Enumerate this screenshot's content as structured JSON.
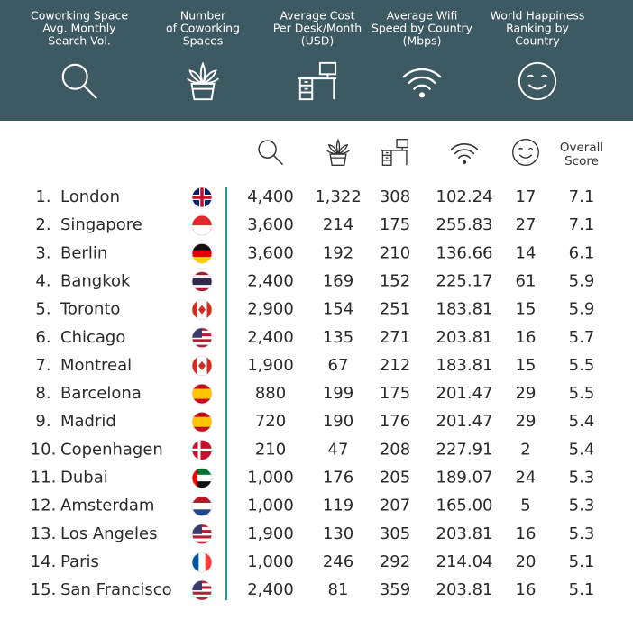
{
  "header": {
    "columns": [
      [
        "Coworking Space",
        "Avg. Monthly",
        "Search Vol."
      ],
      [
        "Number",
        "of Coworking",
        "Spaces"
      ],
      [
        "Average Cost",
        "Per Desk/Month",
        "(USD)"
      ],
      [
        "Average Wifi",
        "Speed by Country",
        "(Mbps)"
      ],
      [
        "World Happiness",
        "Ranking by",
        "Country"
      ]
    ]
  },
  "table": {
    "score_header": [
      "Overall",
      "Score"
    ],
    "rows": [
      [
        "1.",
        "London",
        "4,400",
        "1,322",
        "308",
        "102.24",
        "17",
        "7.1"
      ],
      [
        "2.",
        "Singapore",
        "3,600",
        "214",
        "175",
        "255.83",
        "27",
        "7.1"
      ],
      [
        "3.",
        "Berlin",
        "3,600",
        "192",
        "210",
        "136.66",
        "14",
        "6.1"
      ],
      [
        "4.",
        "Bangkok",
        "2,400",
        "169",
        "152",
        "225.17",
        "61",
        "5.9"
      ],
      [
        "5.",
        "Toronto",
        "2,900",
        "154",
        "251",
        "183.81",
        "15",
        "5.9"
      ],
      [
        "6.",
        "Chicago",
        "2,400",
        "135",
        "271",
        "203.81",
        "16",
        "5.7"
      ],
      [
        "7.",
        "Montreal",
        "1,900",
        "67",
        "212",
        "183.81",
        "15",
        "5.5"
      ],
      [
        "8.",
        "Barcelona",
        "880",
        "199",
        "175",
        "201.47",
        "29",
        "5.5"
      ],
      [
        "9.",
        "Madrid",
        "720",
        "190",
        "176",
        "201.47",
        "29",
        "5.4"
      ],
      [
        "10.",
        "Copenhagen",
        "210",
        "47",
        "208",
        "227.91",
        "2",
        "5.4"
      ],
      [
        "11.",
        "Dubai",
        "1,000",
        "176",
        "205",
        "189.07",
        "24",
        "5.3"
      ],
      [
        "12.",
        "Amsterdam",
        "1,000",
        "119",
        "207",
        "165.00",
        "5",
        "5.3"
      ],
      [
        "13.",
        "Los Angeles",
        "1,900",
        "130",
        "305",
        "203.81",
        "16",
        "5.3"
      ],
      [
        "14.",
        "Paris",
        "1,000",
        "246",
        "292",
        "214.04",
        "20",
        "5.1"
      ],
      [
        "15.",
        "San Francisco",
        "2,400",
        "81",
        "359",
        "203.81",
        "16",
        "5.1"
      ]
    ]
  }
}
